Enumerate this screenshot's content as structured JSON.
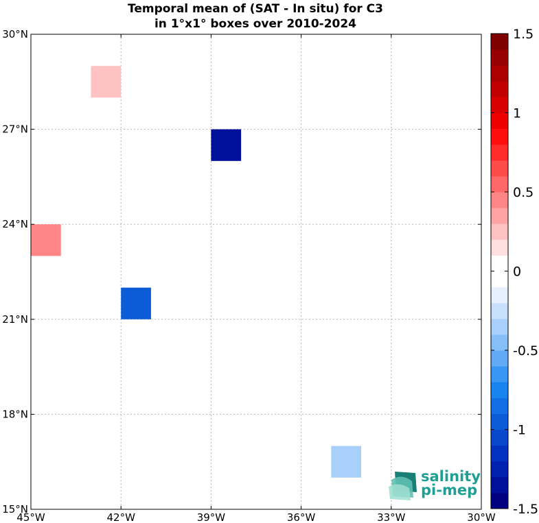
{
  "title": {
    "line1": "Temporal mean of (SAT - In situ) for C3",
    "line2": "in 1°x1° boxes over 2010-2024"
  },
  "chart_data": {
    "type": "heatmap",
    "map": {
      "lon_range": [
        -45,
        -30
      ],
      "lat_range": [
        15,
        30
      ],
      "grid": true,
      "lon_ticks": [
        -45,
        -42,
        -39,
        -36,
        -33,
        -30
      ],
      "lat_ticks": [
        15,
        18,
        21,
        24,
        27,
        30
      ],
      "lon_tick_labels": [
        "45°W",
        "42°W",
        "39°W",
        "36°W",
        "33°W",
        "30°W"
      ],
      "lat_tick_labels": [
        "15°N",
        "18°N",
        "21°N",
        "24°N",
        "27°N",
        "30°N"
      ]
    },
    "cells": [
      {
        "lon": [
          -43,
          -42
        ],
        "lat": [
          28,
          29
        ],
        "value": 0.2
      },
      {
        "lon": [
          -39,
          -38
        ],
        "lat": [
          26,
          27
        ],
        "value": -1.4
      },
      {
        "lon": [
          -45,
          -44
        ],
        "lat": [
          23,
          24
        ],
        "value": 0.4
      },
      {
        "lon": [
          -42,
          -41
        ],
        "lat": [
          21,
          22
        ],
        "value": -1.0
      },
      {
        "lon": [
          -35,
          -34
        ],
        "lat": [
          16,
          17
        ],
        "value": -0.3
      }
    ],
    "colorbar": {
      "range": [
        -1.5,
        1.5
      ],
      "levels": 30,
      "ticks": [
        1.5,
        1,
        0.5,
        0,
        -0.5,
        -1,
        -1.5
      ],
      "tick_labels": [
        "1.5",
        "1",
        "0.5",
        "0",
        "-0.5",
        "-1",
        "-1.5"
      ],
      "colors": [
        "#000080",
        "#00109a",
        "#0020b0",
        "#0432c0",
        "#0848cc",
        "#0c5cd8",
        "#1270e4",
        "#1884f0",
        "#3a96f4",
        "#62aaf6",
        "#86bef8",
        "#a8d0fa",
        "#c8e0fc",
        "#e6f0fe",
        "#ffffff",
        "#ffffff",
        "#ffe0e0",
        "#ffc2c2",
        "#ffa4a4",
        "#ff8686",
        "#ff6868",
        "#ff4a4a",
        "#ff2c2c",
        "#ff0e0e",
        "#ee0000",
        "#d80000",
        "#c20000",
        "#ac0000",
        "#960000",
        "#800000"
      ]
    }
  },
  "logo": {
    "line1": "salinity",
    "line2": "pi-mep"
  }
}
